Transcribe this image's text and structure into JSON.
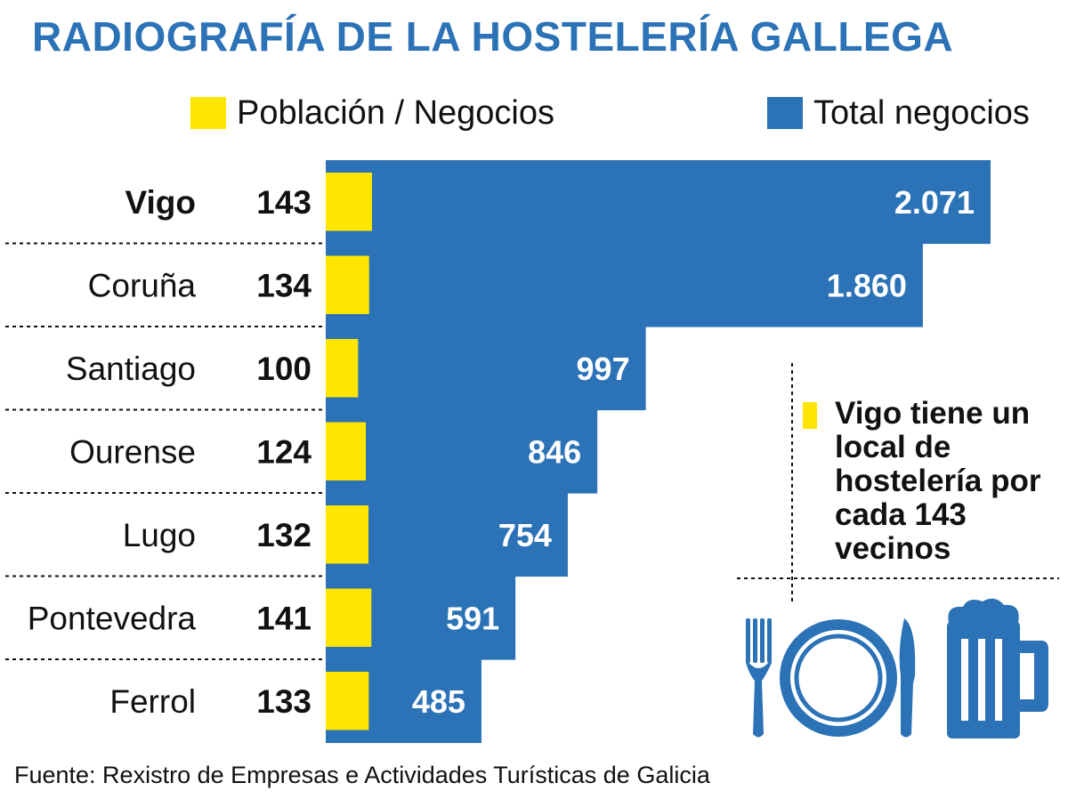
{
  "title": "RADIOGRAFÍA DE LA HOSTELERÍA GALLEGA",
  "legend": [
    {
      "label": "Población / Negocios",
      "color": "#ffe600"
    },
    {
      "label": "Total negocios",
      "color": "#2b72b6"
    }
  ],
  "colors": {
    "accent": "#2b72b6",
    "highlight": "#ffe600"
  },
  "chart_data": {
    "type": "bar",
    "categories": [
      "Vigo",
      "Coruña",
      "Santiago",
      "Ourense",
      "Lugo",
      "Pontevedra",
      "Ferrol"
    ],
    "series": [
      {
        "name": "Población / Negocios",
        "values": [
          143,
          134,
          100,
          124,
          132,
          141,
          133
        ]
      },
      {
        "name": "Total negocios",
        "values": [
          2071,
          1860,
          997,
          846,
          754,
          591,
          485
        ]
      }
    ],
    "ratio_labels": [
      "143",
      "134",
      "100",
      "124",
      "132",
      "141",
      "133"
    ],
    "value_labels": [
      "2.071",
      "1.860",
      "997",
      "846",
      "754",
      "591",
      "485"
    ],
    "highlighted_category": "Vigo",
    "orientation": "horizontal"
  },
  "callout": "Vigo tiene un local de hostelería por cada 143 vecinos",
  "icons": [
    "fork-icon",
    "plate-icon",
    "knife-icon",
    "beer-mug-icon"
  ],
  "source": "Fuente: Rexistro de Empresas e Actividades Turísticas de Galicia"
}
